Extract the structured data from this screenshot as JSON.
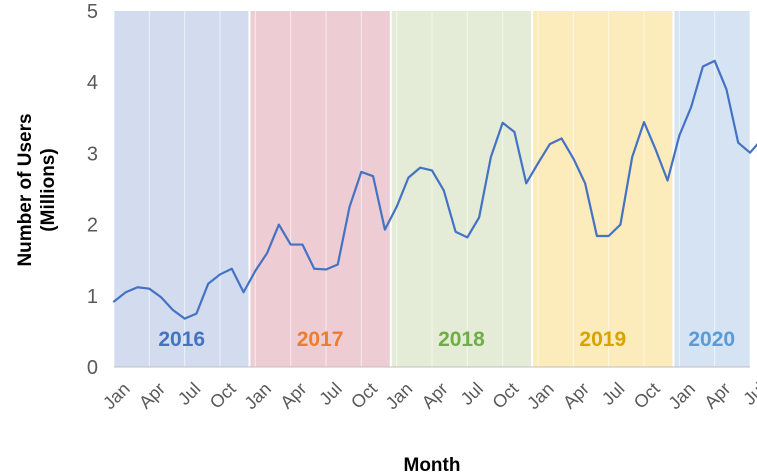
{
  "chart_data": {
    "type": "line",
    "title": "",
    "xlabel": "Month",
    "ylabel": "Number of Users (Millions)",
    "ylabel_lines": [
      "Number of Users",
      "(Millions)"
    ],
    "ylim": [
      0,
      5
    ],
    "yticks": [
      "0",
      "1",
      "2",
      "3",
      "4",
      "5"
    ],
    "grid": "vertical",
    "xtick_labels": [
      "Jan",
      "Apr",
      "Jul",
      "Oct",
      "Jan",
      "Apr",
      "Jul",
      "Oct",
      "Jan",
      "Apr",
      "Jul",
      "Oct",
      "Jan",
      "Apr",
      "Jul",
      "Oct",
      "Jan",
      "Apr",
      "Jul"
    ],
    "line_color": "#4472C4",
    "periods": [
      {
        "label": "2016",
        "color": "#4472C4",
        "band_color": "#D2DCEE"
      },
      {
        "label": "2017",
        "color": "#ED7D31",
        "band_color": "#EDCDD3"
      },
      {
        "label": "2018",
        "color": "#70AD47",
        "band_color": "#E4EBD6"
      },
      {
        "label": "2019",
        "color": "#D9A300",
        "band_color": "#FCEBBB"
      },
      {
        "label": "2020",
        "color": "#5B9BD5",
        "band_color": "#D5E3F3"
      }
    ],
    "series": [
      {
        "x": [
          "2016-01",
          "2016-02",
          "2016-03",
          "2016-04",
          "2016-05",
          "2016-06",
          "2016-07",
          "2016-08",
          "2016-09",
          "2016-10",
          "2016-11",
          "2016-12",
          "2017-01",
          "2017-02",
          "2017-03",
          "2017-04",
          "2017-05",
          "2017-06",
          "2017-07",
          "2017-08",
          "2017-09",
          "2017-10",
          "2017-11",
          "2017-12",
          "2018-01",
          "2018-02",
          "2018-03",
          "2018-04",
          "2018-05",
          "2018-06",
          "2018-07",
          "2018-08",
          "2018-09",
          "2018-10",
          "2018-11",
          "2018-12",
          "2019-01",
          "2019-02",
          "2019-03",
          "2019-04",
          "2019-05",
          "2019-06",
          "2019-07",
          "2019-08",
          "2019-09",
          "2019-10",
          "2019-11",
          "2019-12",
          "2020-01",
          "2020-02",
          "2020-03",
          "2020-04",
          "2020-05",
          "2020-06",
          "2020-07",
          "2020-08"
        ],
        "values": [
          0.92,
          1.05,
          1.12,
          1.1,
          0.98,
          0.8,
          0.68,
          0.75,
          1.17,
          1.3,
          1.38,
          1.05,
          1.35,
          1.6,
          2.0,
          1.72,
          1.72,
          1.38,
          1.37,
          1.44,
          2.25,
          2.74,
          2.68,
          1.93,
          2.25,
          2.66,
          2.8,
          2.76,
          2.48,
          1.9,
          1.82,
          2.1,
          2.95,
          3.43,
          3.3,
          2.58,
          2.86,
          3.13,
          3.21,
          2.93,
          2.58,
          1.84,
          1.84,
          2.0,
          2.95,
          3.44,
          3.05,
          2.62,
          3.25,
          3.65,
          4.22,
          4.3,
          3.9,
          3.15,
          3.01,
          3.2
        ]
      }
    ]
  }
}
